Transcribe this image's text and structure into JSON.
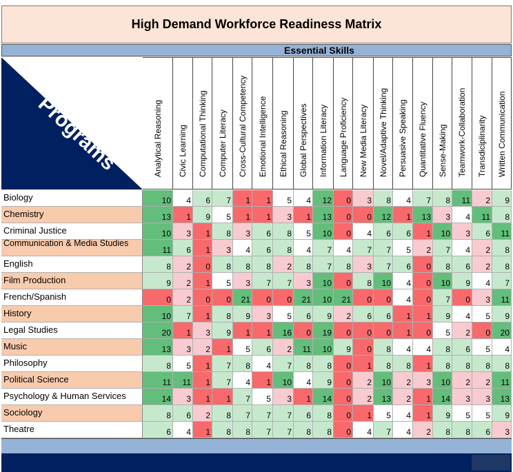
{
  "title": "High Demand Workforce Readiness Matrix",
  "skills_header": "Essential Skills",
  "corner_label": "Programs",
  "colors": {
    "green_strong": "#63be7b",
    "green_light": "#c6e9ce",
    "white": "#ffffff",
    "red_light": "#f8cbd0",
    "red_strong": "#f8696b",
    "label_shade": "#f8cbad",
    "header_blue": "#95b3d7",
    "navy": "#002060"
  },
  "chart_data": {
    "type": "heatmap",
    "title": "High Demand Workforce Readiness Matrix",
    "xlabel": "Essential Skills",
    "ylabel": "Programs",
    "columns": [
      "Analytical Reasoning",
      "Civic Learning",
      "Computational Thinking",
      "Computer Literacy",
      "Cross-Cultural Competency",
      "Emotional Intelligence",
      "Ethical Reasoning",
      "Global Perspectives",
      "Information Literacy",
      "Language Proficiency",
      "New Media Literacy",
      "Novel/Adaptive Thinking",
      "Persuasive Speaking",
      "Quantitative Fluency",
      "Sense-Making",
      "Teamwork-Collaboration",
      "Transdiciplinarity",
      "Written Communication"
    ],
    "rows": [
      {
        "name": "Biology",
        "values": [
          10,
          4,
          6,
          7,
          1,
          1,
          5,
          4,
          12,
          0,
          3,
          8,
          4,
          7,
          8,
          11,
          2,
          9
        ]
      },
      {
        "name": "Chemistry",
        "values": [
          13,
          1,
          9,
          5,
          1,
          1,
          3,
          1,
          13,
          0,
          0,
          12,
          1,
          13,
          3,
          4,
          11,
          8
        ]
      },
      {
        "name": "Criminal Justice",
        "values": [
          10,
          3,
          1,
          8,
          3,
          6,
          8,
          5,
          10,
          0,
          4,
          6,
          6,
          1,
          10,
          3,
          6,
          11
        ]
      },
      {
        "name": "Communication & Media Studies",
        "values": [
          11,
          6,
          1,
          3,
          4,
          6,
          8,
          4,
          7,
          4,
          7,
          7,
          5,
          2,
          7,
          4,
          2,
          8
        ]
      },
      {
        "name": "English",
        "values": [
          8,
          2,
          0,
          8,
          8,
          8,
          2,
          8,
          7,
          8,
          3,
          7,
          6,
          0,
          8,
          6,
          2,
          8
        ]
      },
      {
        "name": "Film Production",
        "values": [
          9,
          2,
          1,
          5,
          3,
          7,
          7,
          3,
          10,
          0,
          8,
          10,
          4,
          0,
          10,
          9,
          4,
          7
        ]
      },
      {
        "name": "French/Spanish",
        "values": [
          0,
          2,
          0,
          0,
          21,
          0,
          0,
          21,
          10,
          21,
          0,
          0,
          4,
          0,
          7,
          0,
          3,
          11
        ]
      },
      {
        "name": "History",
        "values": [
          10,
          7,
          1,
          8,
          9,
          3,
          5,
          6,
          9,
          2,
          6,
          6,
          1,
          1,
          9,
          4,
          5,
          9
        ]
      },
      {
        "name": "Legal Studies",
        "values": [
          20,
          1,
          3,
          9,
          1,
          1,
          16,
          0,
          19,
          0,
          0,
          0,
          1,
          0,
          5,
          2,
          0,
          20
        ]
      },
      {
        "name": "Music",
        "values": [
          13,
          3,
          2,
          1,
          5,
          6,
          2,
          11,
          10,
          9,
          0,
          8,
          4,
          4,
          8,
          6,
          5,
          4
        ]
      },
      {
        "name": "Philosophy",
        "values": [
          8,
          5,
          1,
          7,
          8,
          4,
          7,
          8,
          8,
          0,
          1,
          8,
          8,
          1,
          8,
          8,
          8,
          8
        ]
      },
      {
        "name": "Political Science",
        "values": [
          11,
          11,
          1,
          7,
          4,
          1,
          10,
          4,
          9,
          0,
          2,
          10,
          2,
          3,
          10,
          2,
          2,
          11
        ]
      },
      {
        "name": "Psychology & Human Services",
        "values": [
          14,
          3,
          1,
          1,
          7,
          5,
          3,
          1,
          14,
          0,
          2,
          13,
          2,
          1,
          14,
          3,
          3,
          13
        ]
      },
      {
        "name": "Sociology",
        "values": [
          8,
          6,
          2,
          8,
          7,
          7,
          7,
          6,
          8,
          0,
          1,
          5,
          4,
          1,
          9,
          5,
          5,
          9
        ]
      },
      {
        "name": "Theatre",
        "values": [
          6,
          4,
          1,
          8,
          8,
          7,
          7,
          8,
          8,
          0,
          4,
          7,
          4,
          2,
          8,
          8,
          6,
          3
        ]
      }
    ]
  }
}
